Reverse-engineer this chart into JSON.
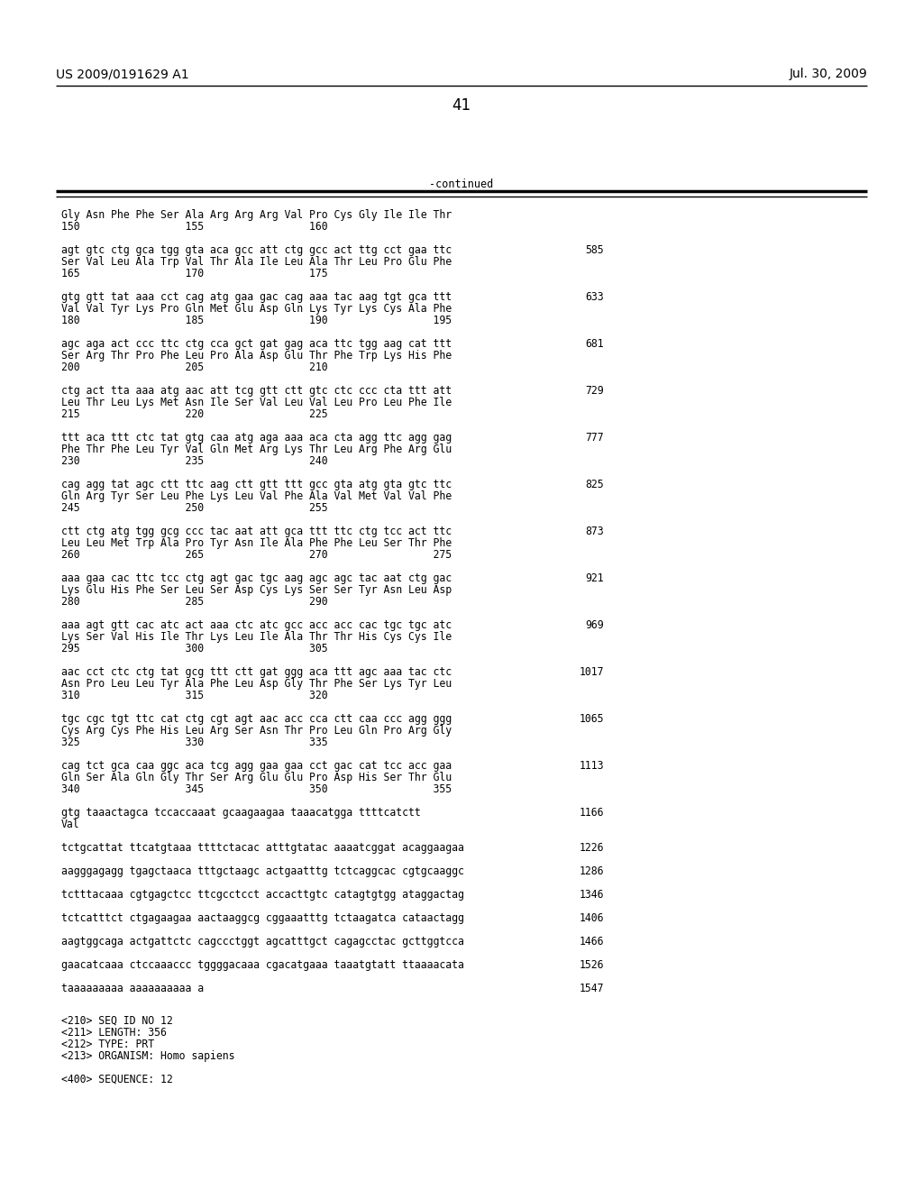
{
  "bg_color": "#ffffff",
  "header_left": "US 2009/0191629 A1",
  "header_right": "Jul. 30, 2009",
  "page_number": "41",
  "continued_label": "-continued",
  "content_blocks": [
    {
      "dna_line": null,
      "aa_line": "Gly Asn Phe Phe Ser Ala Arg Arg Arg Val Pro Cys Gly Ile Ile Thr",
      "num_line": "150                 155                 160",
      "num_right": null
    },
    {
      "dna_line": "agt gtc ctg gca tgg gta aca gcc att ctg gcc act ttg cct gaa ttc",
      "aa_line": "Ser Val Leu Ala Trp Val Thr Ala Ile Leu Ala Thr Leu Pro Glu Phe",
      "num_line": "165                 170                 175",
      "num_right": "585"
    },
    {
      "dna_line": "gtg gtt tat aaa cct cag atg gaa gac cag aaa tac aag tgt gca ttt",
      "aa_line": "Val Val Tyr Lys Pro Gln Met Glu Asp Gln Lys Tyr Lys Cys Ala Phe",
      "num_line": "180                 185                 190                 195",
      "num_right": "633"
    },
    {
      "dna_line": "agc aga act ccc ttc ctg cca gct gat gag aca ttc tgg aag cat ttt",
      "aa_line": "Ser Arg Thr Pro Phe Leu Pro Ala Asp Glu Thr Phe Trp Lys His Phe",
      "num_line": "200                 205                 210",
      "num_right": "681"
    },
    {
      "dna_line": "ctg act tta aaa atg aac att tcg gtt ctt gtc ctc ccc cta ttt att",
      "aa_line": "Leu Thr Leu Lys Met Asn Ile Ser Val Leu Val Leu Pro Leu Phe Ile",
      "num_line": "215                 220                 225",
      "num_right": "729"
    },
    {
      "dna_line": "ttt aca ttt ctc tat gtg caa atg aga aaa aca cta agg ttc agg gag",
      "aa_line": "Phe Thr Phe Leu Tyr Val Gln Met Arg Lys Thr Leu Arg Phe Arg Glu",
      "num_line": "230                 235                 240",
      "num_right": "777"
    },
    {
      "dna_line": "cag agg tat agc ctt ttc aag ctt gtt ttt gcc gta atg gta gtc ttc",
      "aa_line": "Gln Arg Tyr Ser Leu Phe Lys Leu Val Phe Ala Val Met Val Val Phe",
      "num_line": "245                 250                 255",
      "num_right": "825"
    },
    {
      "dna_line": "ctt ctg atg tgg gcg ccc tac aat att gca ttt ttc ctg tcc act ttc",
      "aa_line": "Leu Leu Met Trp Ala Pro Tyr Asn Ile Ala Phe Phe Leu Ser Thr Phe",
      "num_line": "260                 265                 270                 275",
      "num_right": "873"
    },
    {
      "dna_line": "aaa gaa cac ttc tcc ctg agt gac tgc aag agc agc tac aat ctg gac",
      "aa_line": "Lys Glu His Phe Ser Leu Ser Asp Cys Lys Ser Ser Tyr Asn Leu Asp",
      "num_line": "280                 285                 290",
      "num_right": "921"
    },
    {
      "dna_line": "aaa agt gtt cac atc act aaa ctc atc gcc acc acc cac tgc tgc atc",
      "aa_line": "Lys Ser Val His Ile Thr Lys Leu Ile Ala Thr Thr His Cys Cys Ile",
      "num_line": "295                 300                 305",
      "num_right": "969"
    },
    {
      "dna_line": "aac cct ctc ctg tat gcg ttt ctt gat ggg aca ttt agc aaa tac ctc",
      "aa_line": "Asn Pro Leu Leu Tyr Ala Phe Leu Asp Gly Thr Phe Ser Lys Tyr Leu",
      "num_line": "310                 315                 320",
      "num_right": "1017"
    },
    {
      "dna_line": "tgc cgc tgt ttc cat ctg cgt agt aac acc cca ctt caa ccc agg ggg",
      "aa_line": "Cys Arg Cys Phe His Leu Arg Ser Asn Thr Pro Leu Gln Pro Arg Gly",
      "num_line": "325                 330                 335",
      "num_right": "1065"
    },
    {
      "dna_line": "cag tct gca caa ggc aca tcg agg gaa gaa cct gac cat tcc acc gaa",
      "aa_line": "Gln Ser Ala Gln Gly Thr Ser Arg Glu Glu Pro Asp His Ser Thr Glu",
      "num_line": "340                 345                 350                 355",
      "num_right": "1113"
    }
  ],
  "trailing_lines": [
    {
      "text": "gtg taaactagca tccaccaaat gcaagaagaa taaacatgga ttttcatctt",
      "num_right": "1166"
    },
    {
      "text": "Val",
      "num_right": null
    },
    {
      "text": "tctgcattat ttcatgtaaa ttttctacac atttgtatac aaaatcggat acaggaagaa",
      "num_right": "1226"
    },
    {
      "text": "aagggagagg tgagctaaca tttgctaagc actgaatttg tctcaggcac cgtgcaaggc",
      "num_right": "1286"
    },
    {
      "text": "tctttacaaa cgtgagctcc ttcgcctcct accacttgtc catagtgtgg ataggactag",
      "num_right": "1346"
    },
    {
      "text": "tctcatttct ctgagaagaa aactaaggcg cggaaatttg tctaagatca cataactagg",
      "num_right": "1406"
    },
    {
      "text": "aagtggcaga actgattctc cagccctggt agcatttgct cagagcctac gcttggtcca",
      "num_right": "1466"
    },
    {
      "text": "gaacatcaaa ctccaaaccc tggggacaaa cgacatgaaa taaatgtatt ttaaaacata",
      "num_right": "1526"
    },
    {
      "text": "taaaaaaaaa aaaaaaaaaa a",
      "num_right": "1547"
    }
  ],
  "footer_lines": [
    "<210> SEQ ID NO 12",
    "<211> LENGTH: 356",
    "<212> TYPE: PRT",
    "<213> ORGANISM: Homo sapiens",
    "",
    "<400> SEQUENCE: 12"
  ]
}
